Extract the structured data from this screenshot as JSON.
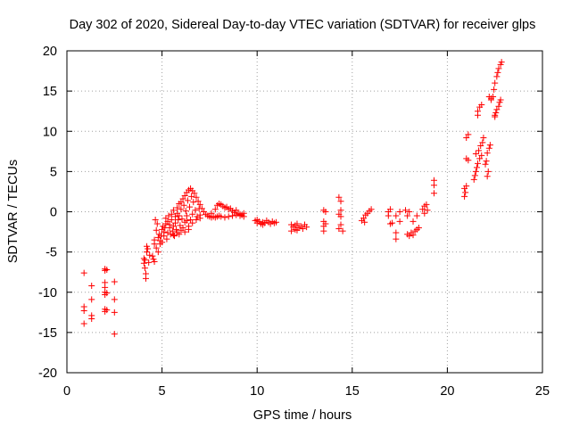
{
  "chart_data": {
    "type": "scatter",
    "title": "Day 302 of 2020, Sidereal Day-to-day VTEC variation (SDTVAR) for receiver glps",
    "xlabel": "GPS time / hours",
    "ylabel": "SDTVAR / TECUs",
    "xlim": [
      0,
      25
    ],
    "ylim": [
      -20,
      20
    ],
    "xticks": [
      0,
      5,
      10,
      15,
      20,
      25
    ],
    "yticks": [
      -20,
      -15,
      -10,
      -5,
      0,
      5,
      10,
      15,
      20
    ],
    "grid": true,
    "marker": "+",
    "color": "#ff0000",
    "series": [
      {
        "name": "SDTVAR",
        "points": [
          [
            0.9,
            -7.6
          ],
          [
            0.9,
            -11.8
          ],
          [
            0.9,
            -12.3
          ],
          [
            0.9,
            -13.9
          ],
          [
            1.3,
            -9.2
          ],
          [
            1.3,
            -10.9
          ],
          [
            1.3,
            -12.9
          ],
          [
            1.3,
            -13.3
          ],
          [
            2.0,
            -7.1
          ],
          [
            2.0,
            -7.3
          ],
          [
            2.0,
            -8.8
          ],
          [
            2.0,
            -9.4
          ],
          [
            2.0,
            -10.0
          ],
          [
            2.0,
            -10.3
          ],
          [
            2.0,
            -12.1
          ],
          [
            2.0,
            -12.4
          ],
          [
            2.1,
            -7.2
          ],
          [
            2.1,
            -10.1
          ],
          [
            2.1,
            -12.2
          ],
          [
            2.5,
            -8.7
          ],
          [
            2.5,
            -10.9
          ],
          [
            2.5,
            -12.5
          ],
          [
            2.5,
            -15.2
          ],
          [
            4.05,
            -5.8
          ],
          [
            4.05,
            -6.4
          ],
          [
            4.1,
            -6.0
          ],
          [
            4.1,
            -7.0
          ],
          [
            4.15,
            -7.7
          ],
          [
            4.15,
            -8.3
          ],
          [
            4.2,
            -4.3
          ],
          [
            4.2,
            -5.0
          ],
          [
            4.25,
            -4.6
          ],
          [
            4.3,
            -6.3
          ],
          [
            4.35,
            -5.4
          ],
          [
            4.5,
            -5.5
          ],
          [
            4.55,
            -5.9
          ],
          [
            4.6,
            -6.2
          ],
          [
            4.6,
            -4.0
          ],
          [
            4.6,
            -3.5
          ],
          [
            4.65,
            -1.0
          ],
          [
            4.7,
            -4.5
          ],
          [
            4.7,
            -2.3
          ],
          [
            4.75,
            -1.5
          ],
          [
            4.8,
            -3.2
          ],
          [
            4.8,
            -5.0
          ],
          [
            4.85,
            -2.8
          ],
          [
            4.9,
            -4.0
          ],
          [
            4.9,
            -3.6
          ],
          [
            4.95,
            -3.0
          ],
          [
            5.0,
            -2.2
          ],
          [
            5.0,
            -3.8
          ],
          [
            5.05,
            -1.8
          ],
          [
            5.1,
            -2.5
          ],
          [
            5.1,
            -3.0
          ],
          [
            5.15,
            -2.0
          ],
          [
            5.2,
            -0.8
          ],
          [
            5.2,
            -1.5
          ],
          [
            5.25,
            -3.4
          ],
          [
            5.3,
            -2.6
          ],
          [
            5.3,
            -1.2
          ],
          [
            5.35,
            -0.5
          ],
          [
            5.4,
            -2.0
          ],
          [
            5.4,
            -1.6
          ],
          [
            5.45,
            -2.8
          ],
          [
            5.5,
            -0.3
          ],
          [
            5.5,
            -1.0
          ],
          [
            5.55,
            -2.4
          ],
          [
            5.6,
            -1.8
          ],
          [
            5.6,
            0.2
          ],
          [
            5.65,
            -3.0
          ],
          [
            5.7,
            -0.6
          ],
          [
            5.7,
            -1.4
          ],
          [
            5.75,
            -2.2
          ],
          [
            5.8,
            0.5
          ],
          [
            5.8,
            -0.2
          ],
          [
            5.85,
            -1.0
          ],
          [
            5.9,
            -2.8
          ],
          [
            5.9,
            1.0
          ],
          [
            5.95,
            -1.7
          ],
          [
            6.0,
            0.3
          ],
          [
            6.0,
            1.2
          ],
          [
            6.05,
            -0.9
          ],
          [
            6.1,
            -2.0
          ],
          [
            6.1,
            1.6
          ],
          [
            6.15,
            0.8
          ],
          [
            6.2,
            -1.3
          ],
          [
            6.2,
            2.0
          ],
          [
            6.25,
            0.1
          ],
          [
            6.3,
            2.4
          ],
          [
            6.3,
            -0.5
          ],
          [
            6.35,
            1.4
          ],
          [
            6.4,
            2.7
          ],
          [
            6.4,
            -2.2
          ],
          [
            6.45,
            0.6
          ],
          [
            6.5,
            2.9
          ],
          [
            6.5,
            -1.0
          ],
          [
            6.55,
            1.9
          ],
          [
            6.6,
            2.6
          ],
          [
            6.6,
            -0.3
          ],
          [
            6.65,
            1.2
          ],
          [
            6.7,
            2.3
          ],
          [
            6.75,
            0.2
          ],
          [
            6.8,
            1.8
          ],
          [
            6.85,
            -0.6
          ],
          [
            6.9,
            1.3
          ],
          [
            6.95,
            0.4
          ],
          [
            7.0,
            0.9
          ],
          [
            7.0,
            -0.4
          ],
          [
            7.1,
            0.4
          ],
          [
            7.2,
            0.0
          ],
          [
            7.3,
            -0.3
          ],
          [
            7.4,
            -0.5
          ],
          [
            6.2,
            -2.5
          ],
          [
            6.4,
            -1.8
          ],
          [
            6.6,
            -1.4
          ],
          [
            6.8,
            -1.0
          ],
          [
            7.0,
            -0.8
          ],
          [
            5.8,
            -2.6
          ],
          [
            5.6,
            -2.9
          ],
          [
            6.0,
            -2.3
          ],
          [
            6.3,
            -1.1
          ],
          [
            5.9,
            -0.5
          ],
          [
            7.5,
            -0.6
          ],
          [
            7.6,
            -0.7
          ],
          [
            7.7,
            -0.6
          ],
          [
            7.8,
            -0.7
          ],
          [
            7.9,
            0.8
          ],
          [
            8.0,
            1.0
          ],
          [
            8.1,
            -0.6
          ],
          [
            8.1,
            0.9
          ],
          [
            8.2,
            0.7
          ],
          [
            8.3,
            -0.7
          ],
          [
            8.3,
            0.5
          ],
          [
            8.4,
            0.6
          ],
          [
            8.5,
            -0.6
          ],
          [
            8.5,
            0.3
          ],
          [
            8.6,
            0.4
          ],
          [
            8.7,
            -0.5
          ],
          [
            8.7,
            0.1
          ],
          [
            8.8,
            -0.1
          ],
          [
            8.9,
            -0.4
          ],
          [
            8.9,
            0.2
          ],
          [
            9.0,
            -0.2
          ],
          [
            9.1,
            -0.5
          ],
          [
            9.1,
            -0.3
          ],
          [
            9.2,
            -0.4
          ],
          [
            9.3,
            -0.6
          ],
          [
            9.3,
            -0.2
          ],
          [
            7.9,
            -0.6
          ],
          [
            8.0,
            -0.5
          ],
          [
            7.6,
            -0.2
          ],
          [
            7.8,
            0.3
          ],
          [
            9.9,
            -1.1
          ],
          [
            10.0,
            -1.4
          ],
          [
            10.1,
            -1.2
          ],
          [
            10.2,
            -1.5
          ],
          [
            10.3,
            -1.3
          ],
          [
            10.4,
            -1.4
          ],
          [
            10.5,
            -1.1
          ],
          [
            10.6,
            -1.3
          ],
          [
            10.7,
            -1.5
          ],
          [
            10.8,
            -1.2
          ],
          [
            10.9,
            -1.4
          ],
          [
            11.0,
            -1.3
          ],
          [
            10.0,
            -1.0
          ],
          [
            10.3,
            -1.6
          ],
          [
            11.8,
            -1.6
          ],
          [
            11.8,
            -2.4
          ],
          [
            11.9,
            -1.9
          ],
          [
            12.0,
            -1.7
          ],
          [
            12.0,
            -2.2
          ],
          [
            12.1,
            -1.5
          ],
          [
            12.2,
            -2.0
          ],
          [
            12.3,
            -1.8
          ],
          [
            12.4,
            -2.1
          ],
          [
            12.5,
            -1.6
          ],
          [
            12.6,
            -1.9
          ],
          [
            12.1,
            -2.3
          ],
          [
            13.5,
            0.2
          ],
          [
            13.5,
            -1.2
          ],
          [
            13.5,
            -1.8
          ],
          [
            13.5,
            -2.4
          ],
          [
            13.6,
            0.0
          ],
          [
            13.6,
            -1.5
          ],
          [
            14.3,
            1.8
          ],
          [
            14.3,
            -0.3
          ],
          [
            14.3,
            -2.1
          ],
          [
            14.4,
            1.3
          ],
          [
            14.4,
            0.2
          ],
          [
            14.4,
            -0.6
          ],
          [
            14.4,
            -1.6
          ],
          [
            14.5,
            -2.4
          ],
          [
            15.5,
            -1.1
          ],
          [
            15.6,
            -0.8
          ],
          [
            15.7,
            -0.4
          ],
          [
            15.8,
            -0.2
          ],
          [
            15.9,
            0.1
          ],
          [
            16.0,
            0.3
          ],
          [
            15.65,
            -1.3
          ],
          [
            16.9,
            0.0
          ],
          [
            16.9,
            -0.5
          ],
          [
            17.0,
            0.3
          ],
          [
            17.0,
            -1.5
          ],
          [
            17.1,
            -1.4
          ],
          [
            17.3,
            -3.4
          ],
          [
            17.3,
            -2.6
          ],
          [
            17.3,
            -0.5
          ],
          [
            17.5,
            0.0
          ],
          [
            17.5,
            -1.2
          ],
          [
            17.8,
            0.2
          ],
          [
            17.9,
            -0.5
          ],
          [
            17.9,
            -2.8
          ],
          [
            18.0,
            -3.0
          ],
          [
            18.0,
            0.0
          ],
          [
            18.1,
            -2.6
          ],
          [
            18.2,
            -2.9
          ],
          [
            18.2,
            -1.2
          ],
          [
            18.3,
            -2.4
          ],
          [
            18.4,
            -2.2
          ],
          [
            18.4,
            -0.5
          ],
          [
            18.5,
            -2.0
          ],
          [
            18.7,
            0.3
          ],
          [
            18.8,
            0.7
          ],
          [
            18.8,
            -0.2
          ],
          [
            18.9,
            0.9
          ],
          [
            18.95,
            0.2
          ],
          [
            19.3,
            2.3
          ],
          [
            19.3,
            3.3
          ],
          [
            19.3,
            3.9
          ],
          [
            20.9,
            1.9
          ],
          [
            20.9,
            2.9
          ],
          [
            20.95,
            2.4
          ],
          [
            21.0,
            3.2
          ],
          [
            21.0,
            6.6
          ],
          [
            21.0,
            9.2
          ],
          [
            21.1,
            6.4
          ],
          [
            21.1,
            9.6
          ],
          [
            21.4,
            4.0
          ],
          [
            21.45,
            4.5
          ],
          [
            21.5,
            5.0
          ],
          [
            21.5,
            7.2
          ],
          [
            21.55,
            5.5
          ],
          [
            21.6,
            12.5
          ],
          [
            21.6,
            6.0
          ],
          [
            21.65,
            7.6
          ],
          [
            21.7,
            13.0
          ],
          [
            21.7,
            6.6
          ],
          [
            21.75,
            8.2
          ],
          [
            21.8,
            13.3
          ],
          [
            21.8,
            7.0
          ],
          [
            21.85,
            8.6
          ],
          [
            21.9,
            9.2
          ],
          [
            21.6,
            12.0
          ],
          [
            22.0,
            5.9
          ],
          [
            22.05,
            6.3
          ],
          [
            22.1,
            7.3
          ],
          [
            22.2,
            7.9
          ],
          [
            22.25,
            8.3
          ],
          [
            22.2,
            14.3
          ],
          [
            22.3,
            13.9
          ],
          [
            22.3,
            14.1
          ],
          [
            22.1,
            4.4
          ],
          [
            22.15,
            5.0
          ],
          [
            22.4,
            14.3
          ],
          [
            22.45,
            15.2
          ],
          [
            22.5,
            11.8
          ],
          [
            22.5,
            16.0
          ],
          [
            22.55,
            12.3
          ],
          [
            22.6,
            12.7
          ],
          [
            22.6,
            16.8
          ],
          [
            22.65,
            17.3
          ],
          [
            22.7,
            13.1
          ],
          [
            22.7,
            17.8
          ],
          [
            22.75,
            13.6
          ],
          [
            22.8,
            18.3
          ],
          [
            22.8,
            13.9
          ],
          [
            22.85,
            18.6
          ],
          [
            22.5,
            12.0
          ]
        ]
      }
    ]
  }
}
